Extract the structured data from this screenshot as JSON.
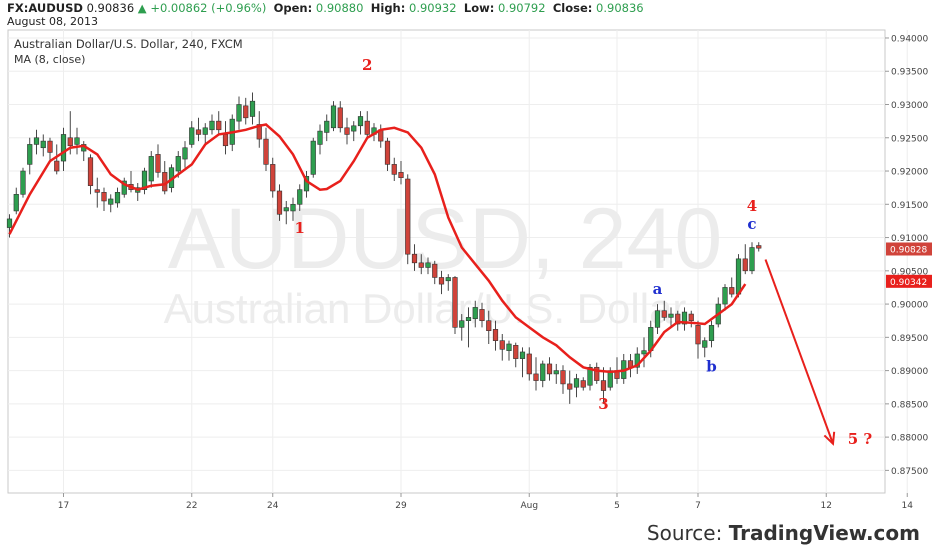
{
  "header": {
    "symbol": "FX:AUDUSD",
    "last": "0.90836",
    "change": "+0.00862 (+0.96%)",
    "open_label": "Open:",
    "open": "0.90880",
    "high_label": "High:",
    "high": "0.90932",
    "low_label": "Low:",
    "low": "0.90792",
    "close_label": "Close:",
    "close": "0.90836",
    "date": "August 08, 2013"
  },
  "colors": {
    "up": "#2e9e4f",
    "down": "#d0433a",
    "ma": "#e8201c",
    "wave_red": "#e8201c",
    "wave_blue": "#1f2fcf",
    "watermark": "#ececec"
  },
  "chart_data": {
    "type": "candlestick",
    "title": "Australian Dollar/U.S. Dollar, 240, FXCM",
    "indicator": "MA (8, close)",
    "watermark_main": "AUDUSD, 240",
    "watermark_sub": "Australian Dollar/U.S. Dollar",
    "ylim": [
      0.8716,
      0.9412
    ],
    "y_ticks": [
      "0.94000",
      "0.93500",
      "0.93000",
      "0.92500",
      "0.92000",
      "0.91500",
      "0.91000",
      "0.90500",
      "0.90000",
      "0.89500",
      "0.89000",
      "0.88500",
      "0.88000",
      "0.87500"
    ],
    "x_ticks": [
      {
        "label": "17",
        "i": 8
      },
      {
        "label": "22",
        "i": 27
      },
      {
        "label": "24",
        "i": 39
      },
      {
        "label": "29",
        "i": 58
      },
      {
        "label": "Aug",
        "i": 77
      },
      {
        "label": "5",
        "i": 90
      },
      {
        "label": "7",
        "i": 102
      },
      {
        "label": "12",
        "i": 121
      },
      {
        "label": "14",
        "i": 133
      }
    ],
    "n_bars": 138,
    "price_labels": [
      {
        "value": 0.90828,
        "text": "0.90828",
        "color": "#d0433a"
      },
      {
        "value": 0.90342,
        "text": "0.90342",
        "color": "#e8201c"
      }
    ],
    "wave_labels": [
      {
        "text": "1",
        "i": 43,
        "price": 0.9107,
        "color": "red"
      },
      {
        "text": "2",
        "i": 53,
        "price": 0.9352,
        "color": "red"
      },
      {
        "text": "3",
        "i": 88,
        "price": 0.8842,
        "color": "red"
      },
      {
        "text": "a",
        "i": 96,
        "price": 0.9015,
        "color": "blue"
      },
      {
        "text": "b",
        "i": 104,
        "price": 0.8899,
        "color": "blue"
      },
      {
        "text": "4",
        "i": 110,
        "price": 0.914,
        "color": "red"
      },
      {
        "text": "c",
        "i": 110,
        "price": 0.9113,
        "color": "blue"
      },
      {
        "text": "5 ?",
        "i": 126,
        "price": 0.879,
        "color": "red"
      }
    ],
    "projection_arrow": {
      "from": {
        "i": 112,
        "price": 0.9067
      },
      "to": {
        "i": 122,
        "price": 0.879
      }
    },
    "ma_points": [
      [
        0,
        0.9105
      ],
      [
        3,
        0.9165
      ],
      [
        6,
        0.9215
      ],
      [
        9,
        0.9235
      ],
      [
        11,
        0.9238
      ],
      [
        13,
        0.9225
      ],
      [
        15,
        0.9195
      ],
      [
        17,
        0.918
      ],
      [
        19,
        0.9172
      ],
      [
        21,
        0.9178
      ],
      [
        23,
        0.918
      ],
      [
        25,
        0.9195
      ],
      [
        27,
        0.921
      ],
      [
        29,
        0.924
      ],
      [
        31,
        0.9255
      ],
      [
        33,
        0.9258
      ],
      [
        35,
        0.9262
      ],
      [
        37,
        0.9268
      ],
      [
        38,
        0.927
      ],
      [
        40,
        0.9252
      ],
      [
        42,
        0.9225
      ],
      [
        44,
        0.9185
      ],
      [
        46,
        0.9172
      ],
      [
        47,
        0.9173
      ],
      [
        49,
        0.9185
      ],
      [
        51,
        0.9215
      ],
      [
        53,
        0.925
      ],
      [
        55,
        0.9262
      ],
      [
        57,
        0.9265
      ],
      [
        59,
        0.9258
      ],
      [
        61,
        0.9235
      ],
      [
        63,
        0.9195
      ],
      [
        65,
        0.913
      ],
      [
        67,
        0.9085
      ],
      [
        69,
        0.906
      ],
      [
        71,
        0.9035
      ],
      [
        73,
        0.9005
      ],
      [
        75,
        0.898
      ],
      [
        77,
        0.8965
      ],
      [
        79,
        0.895
      ],
      [
        81,
        0.8938
      ],
      [
        83,
        0.892
      ],
      [
        85,
        0.8905
      ],
      [
        87,
        0.89
      ],
      [
        89,
        0.8898
      ],
      [
        91,
        0.89
      ],
      [
        93,
        0.8908
      ],
      [
        95,
        0.893
      ],
      [
        97,
        0.8958
      ],
      [
        99,
        0.8973
      ],
      [
        101,
        0.8972
      ],
      [
        103,
        0.897
      ],
      [
        105,
        0.8985
      ],
      [
        107,
        0.9
      ],
      [
        109,
        0.903
      ]
    ],
    "candles": [
      {
        "o": 0.9115,
        "h": 0.9135,
        "l": 0.91,
        "c": 0.9128
      },
      {
        "o": 0.914,
        "h": 0.9175,
        "l": 0.9135,
        "c": 0.9165
      },
      {
        "o": 0.9165,
        "h": 0.9205,
        "l": 0.916,
        "c": 0.92
      },
      {
        "o": 0.921,
        "h": 0.925,
        "l": 0.9195,
        "c": 0.924
      },
      {
        "o": 0.924,
        "h": 0.9262,
        "l": 0.9225,
        "c": 0.925
      },
      {
        "o": 0.9235,
        "h": 0.9255,
        "l": 0.9222,
        "c": 0.9245
      },
      {
        "o": 0.9245,
        "h": 0.925,
        "l": 0.9215,
        "c": 0.9228
      },
      {
        "o": 0.9215,
        "h": 0.924,
        "l": 0.9195,
        "c": 0.92
      },
      {
        "o": 0.9215,
        "h": 0.9265,
        "l": 0.92,
        "c": 0.9255
      },
      {
        "o": 0.925,
        "h": 0.929,
        "l": 0.9225,
        "c": 0.9238
      },
      {
        "o": 0.924,
        "h": 0.9265,
        "l": 0.9225,
        "c": 0.925
      },
      {
        "o": 0.923,
        "h": 0.9245,
        "l": 0.9215,
        "c": 0.924
      },
      {
        "o": 0.922,
        "h": 0.9225,
        "l": 0.9165,
        "c": 0.9178
      },
      {
        "o": 0.9172,
        "h": 0.919,
        "l": 0.9145,
        "c": 0.9168
      },
      {
        "o": 0.9168,
        "h": 0.9175,
        "l": 0.914,
        "c": 0.9155
      },
      {
        "o": 0.915,
        "h": 0.9165,
        "l": 0.9138,
        "c": 0.9158
      },
      {
        "o": 0.9152,
        "h": 0.9175,
        "l": 0.9145,
        "c": 0.9168
      },
      {
        "o": 0.9165,
        "h": 0.919,
        "l": 0.916,
        "c": 0.9185
      },
      {
        "o": 0.918,
        "h": 0.92,
        "l": 0.9168,
        "c": 0.9172
      },
      {
        "o": 0.9168,
        "h": 0.9182,
        "l": 0.9155,
        "c": 0.9175
      },
      {
        "o": 0.9172,
        "h": 0.9205,
        "l": 0.9165,
        "c": 0.92
      },
      {
        "o": 0.9185,
        "h": 0.923,
        "l": 0.9175,
        "c": 0.9222
      },
      {
        "o": 0.9225,
        "h": 0.924,
        "l": 0.919,
        "c": 0.9198
      },
      {
        "o": 0.9198,
        "h": 0.9215,
        "l": 0.9165,
        "c": 0.917
      },
      {
        "o": 0.9175,
        "h": 0.921,
        "l": 0.9168,
        "c": 0.9205
      },
      {
        "o": 0.92,
        "h": 0.923,
        "l": 0.919,
        "c": 0.9222
      },
      {
        "o": 0.9218,
        "h": 0.9245,
        "l": 0.9205,
        "c": 0.9235
      },
      {
        "o": 0.924,
        "h": 0.9275,
        "l": 0.9235,
        "c": 0.9265
      },
      {
        "o": 0.9262,
        "h": 0.928,
        "l": 0.9245,
        "c": 0.9255
      },
      {
        "o": 0.9255,
        "h": 0.9272,
        "l": 0.924,
        "c": 0.9265
      },
      {
        "o": 0.9262,
        "h": 0.9285,
        "l": 0.9255,
        "c": 0.9275
      },
      {
        "o": 0.9275,
        "h": 0.929,
        "l": 0.9255,
        "c": 0.9262
      },
      {
        "o": 0.9255,
        "h": 0.9275,
        "l": 0.9225,
        "c": 0.9238
      },
      {
        "o": 0.924,
        "h": 0.9285,
        "l": 0.923,
        "c": 0.9278
      },
      {
        "o": 0.9275,
        "h": 0.9312,
        "l": 0.9262,
        "c": 0.93
      },
      {
        "o": 0.9298,
        "h": 0.931,
        "l": 0.927,
        "c": 0.928
      },
      {
        "o": 0.9282,
        "h": 0.9318,
        "l": 0.927,
        "c": 0.9305
      },
      {
        "o": 0.927,
        "h": 0.929,
        "l": 0.9235,
        "c": 0.9248
      },
      {
        "o": 0.9248,
        "h": 0.9265,
        "l": 0.92,
        "c": 0.921
      },
      {
        "o": 0.921,
        "h": 0.922,
        "l": 0.916,
        "c": 0.917
      },
      {
        "o": 0.917,
        "h": 0.918,
        "l": 0.9125,
        "c": 0.9135
      },
      {
        "o": 0.914,
        "h": 0.9155,
        "l": 0.912,
        "c": 0.9145
      },
      {
        "o": 0.914,
        "h": 0.916,
        "l": 0.9125,
        "c": 0.915
      },
      {
        "o": 0.915,
        "h": 0.918,
        "l": 0.914,
        "c": 0.9172
      },
      {
        "o": 0.917,
        "h": 0.92,
        "l": 0.916,
        "c": 0.9192
      },
      {
        "o": 0.9195,
        "h": 0.925,
        "l": 0.919,
        "c": 0.9245
      },
      {
        "o": 0.924,
        "h": 0.927,
        "l": 0.9225,
        "c": 0.926
      },
      {
        "o": 0.9258,
        "h": 0.9285,
        "l": 0.9245,
        "c": 0.9275
      },
      {
        "o": 0.9265,
        "h": 0.9305,
        "l": 0.926,
        "c": 0.9298
      },
      {
        "o": 0.9295,
        "h": 0.9305,
        "l": 0.9258,
        "c": 0.9265
      },
      {
        "o": 0.9265,
        "h": 0.928,
        "l": 0.924,
        "c": 0.9255
      },
      {
        "o": 0.926,
        "h": 0.9275,
        "l": 0.9245,
        "c": 0.9268
      },
      {
        "o": 0.9268,
        "h": 0.929,
        "l": 0.9255,
        "c": 0.9282
      },
      {
        "o": 0.9275,
        "h": 0.929,
        "l": 0.9248,
        "c": 0.9255
      },
      {
        "o": 0.9255,
        "h": 0.9272,
        "l": 0.9245,
        "c": 0.9265
      },
      {
        "o": 0.9262,
        "h": 0.927,
        "l": 0.9235,
        "c": 0.9245
      },
      {
        "o": 0.9245,
        "h": 0.925,
        "l": 0.92,
        "c": 0.921
      },
      {
        "o": 0.921,
        "h": 0.922,
        "l": 0.9185,
        "c": 0.9195
      },
      {
        "o": 0.9198,
        "h": 0.9215,
        "l": 0.918,
        "c": 0.919
      },
      {
        "o": 0.9188,
        "h": 0.9195,
        "l": 0.906,
        "c": 0.9075
      },
      {
        "o": 0.9075,
        "h": 0.909,
        "l": 0.905,
        "c": 0.9062
      },
      {
        "o": 0.9062,
        "h": 0.9075,
        "l": 0.9045,
        "c": 0.9055
      },
      {
        "o": 0.9055,
        "h": 0.907,
        "l": 0.9045,
        "c": 0.9062
      },
      {
        "o": 0.906,
        "h": 0.9065,
        "l": 0.903,
        "c": 0.904
      },
      {
        "o": 0.904,
        "h": 0.905,
        "l": 0.9015,
        "c": 0.903
      },
      {
        "o": 0.9035,
        "h": 0.9045,
        "l": 0.902,
        "c": 0.904
      },
      {
        "o": 0.904,
        "h": 0.9042,
        "l": 0.8955,
        "c": 0.8965
      },
      {
        "o": 0.8965,
        "h": 0.8985,
        "l": 0.8945,
        "c": 0.8975
      },
      {
        "o": 0.8975,
        "h": 0.8995,
        "l": 0.8935,
        "c": 0.898
      },
      {
        "o": 0.8978,
        "h": 0.9005,
        "l": 0.8965,
        "c": 0.8995
      },
      {
        "o": 0.8992,
        "h": 0.9002,
        "l": 0.8965,
        "c": 0.8975
      },
      {
        "o": 0.8975,
        "h": 0.899,
        "l": 0.894,
        "c": 0.896
      },
      {
        "o": 0.8962,
        "h": 0.8975,
        "l": 0.893,
        "c": 0.8945
      },
      {
        "o": 0.8945,
        "h": 0.8955,
        "l": 0.8915,
        "c": 0.8932
      },
      {
        "o": 0.893,
        "h": 0.8945,
        "l": 0.8915,
        "c": 0.894
      },
      {
        "o": 0.8938,
        "h": 0.8942,
        "l": 0.8905,
        "c": 0.8918
      },
      {
        "o": 0.8918,
        "h": 0.8935,
        "l": 0.889,
        "c": 0.8928
      },
      {
        "o": 0.8925,
        "h": 0.8935,
        "l": 0.8885,
        "c": 0.8895
      },
      {
        "o": 0.8895,
        "h": 0.892,
        "l": 0.887,
        "c": 0.8885
      },
      {
        "o": 0.8885,
        "h": 0.8915,
        "l": 0.8875,
        "c": 0.891
      },
      {
        "o": 0.891,
        "h": 0.892,
        "l": 0.8885,
        "c": 0.8895
      },
      {
        "o": 0.8895,
        "h": 0.891,
        "l": 0.888,
        "c": 0.89
      },
      {
        "o": 0.89,
        "h": 0.8908,
        "l": 0.8865,
        "c": 0.888
      },
      {
        "o": 0.888,
        "h": 0.89,
        "l": 0.885,
        "c": 0.8872
      },
      {
        "o": 0.8875,
        "h": 0.8895,
        "l": 0.886,
        "c": 0.8888
      },
      {
        "o": 0.8885,
        "h": 0.889,
        "l": 0.887,
        "c": 0.8875
      },
      {
        "o": 0.8878,
        "h": 0.891,
        "l": 0.887,
        "c": 0.8905
      },
      {
        "o": 0.8905,
        "h": 0.8912,
        "l": 0.888,
        "c": 0.8885
      },
      {
        "o": 0.8885,
        "h": 0.8905,
        "l": 0.885,
        "c": 0.887
      },
      {
        "o": 0.8875,
        "h": 0.8905,
        "l": 0.887,
        "c": 0.89
      },
      {
        "o": 0.89,
        "h": 0.892,
        "l": 0.888,
        "c": 0.8888
      },
      {
        "o": 0.8888,
        "h": 0.8925,
        "l": 0.888,
        "c": 0.8915
      },
      {
        "o": 0.8915,
        "h": 0.8925,
        "l": 0.889,
        "c": 0.8905
      },
      {
        "o": 0.8905,
        "h": 0.8935,
        "l": 0.8895,
        "c": 0.8925
      },
      {
        "o": 0.8925,
        "h": 0.895,
        "l": 0.8905,
        "c": 0.893
      },
      {
        "o": 0.893,
        "h": 0.8975,
        "l": 0.892,
        "c": 0.8965
      },
      {
        "o": 0.8965,
        "h": 0.9,
        "l": 0.8955,
        "c": 0.899
      },
      {
        "o": 0.899,
        "h": 0.9005,
        "l": 0.8975,
        "c": 0.898
      },
      {
        "o": 0.898,
        "h": 0.8995,
        "l": 0.8965,
        "c": 0.8985
      },
      {
        "o": 0.8985,
        "h": 0.899,
        "l": 0.896,
        "c": 0.897
      },
      {
        "o": 0.897,
        "h": 0.8995,
        "l": 0.896,
        "c": 0.8988
      },
      {
        "o": 0.8985,
        "h": 0.899,
        "l": 0.8965,
        "c": 0.8975
      },
      {
        "o": 0.8968,
        "h": 0.8975,
        "l": 0.8918,
        "c": 0.894
      },
      {
        "o": 0.8935,
        "h": 0.895,
        "l": 0.892,
        "c": 0.8945
      },
      {
        "o": 0.8945,
        "h": 0.8975,
        "l": 0.8935,
        "c": 0.8968
      },
      {
        "o": 0.897,
        "h": 0.901,
        "l": 0.8965,
        "c": 0.9
      },
      {
        "o": 0.9,
        "h": 0.903,
        "l": 0.899,
        "c": 0.9025
      },
      {
        "o": 0.9025,
        "h": 0.904,
        "l": 0.901,
        "c": 0.9015
      },
      {
        "o": 0.9015,
        "h": 0.9075,
        "l": 0.901,
        "c": 0.9068
      },
      {
        "o": 0.9068,
        "h": 0.909,
        "l": 0.9045,
        "c": 0.905
      },
      {
        "o": 0.905,
        "h": 0.9093,
        "l": 0.9045,
        "c": 0.9085
      },
      {
        "o": 0.9088,
        "h": 0.9093,
        "l": 0.9079,
        "c": 0.9084
      }
    ]
  },
  "source": {
    "prefix": "Source:",
    "brand": "TradingView.com"
  }
}
